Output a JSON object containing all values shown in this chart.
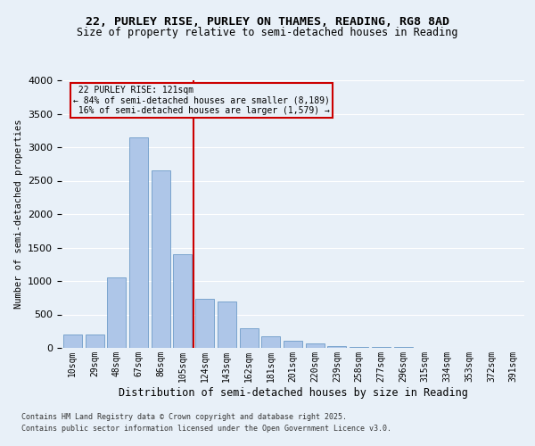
{
  "title1": "22, PURLEY RISE, PURLEY ON THAMES, READING, RG8 8AD",
  "title2": "Size of property relative to semi-detached houses in Reading",
  "xlabel": "Distribution of semi-detached houses by size in Reading",
  "ylabel": "Number of semi-detached properties",
  "bin_labels": [
    "10sqm",
    "29sqm",
    "48sqm",
    "67sqm",
    "86sqm",
    "105sqm",
    "124sqm",
    "143sqm",
    "162sqm",
    "181sqm",
    "201sqm",
    "220sqm",
    "239sqm",
    "258sqm",
    "277sqm",
    "296sqm",
    "315sqm",
    "334sqm",
    "353sqm",
    "372sqm",
    "391sqm"
  ],
  "bar_values": [
    200,
    200,
    1050,
    3150,
    2650,
    1400,
    730,
    700,
    300,
    175,
    110,
    65,
    30,
    20,
    15,
    10,
    5,
    3,
    2,
    2,
    2
  ],
  "bar_color": "#aec6e8",
  "bar_edge_color": "#5a8fc0",
  "background_color": "#e8f0f8",
  "grid_color": "#ffffff",
  "property_line_bin_index": 6,
  "property_label": "22 PURLEY RISE: 121sqm",
  "pct_smaller": 84,
  "pct_larger": 16,
  "count_smaller": "8,189",
  "count_larger": "1,579",
  "annotation_line_color": "#cc0000",
  "annotation_box_edge_color": "#cc0000",
  "ylim": [
    0,
    4000
  ],
  "yticks": [
    0,
    500,
    1000,
    1500,
    2000,
    2500,
    3000,
    3500,
    4000
  ],
  "footnote1": "Contains HM Land Registry data © Crown copyright and database right 2025.",
  "footnote2": "Contains public sector information licensed under the Open Government Licence v3.0."
}
